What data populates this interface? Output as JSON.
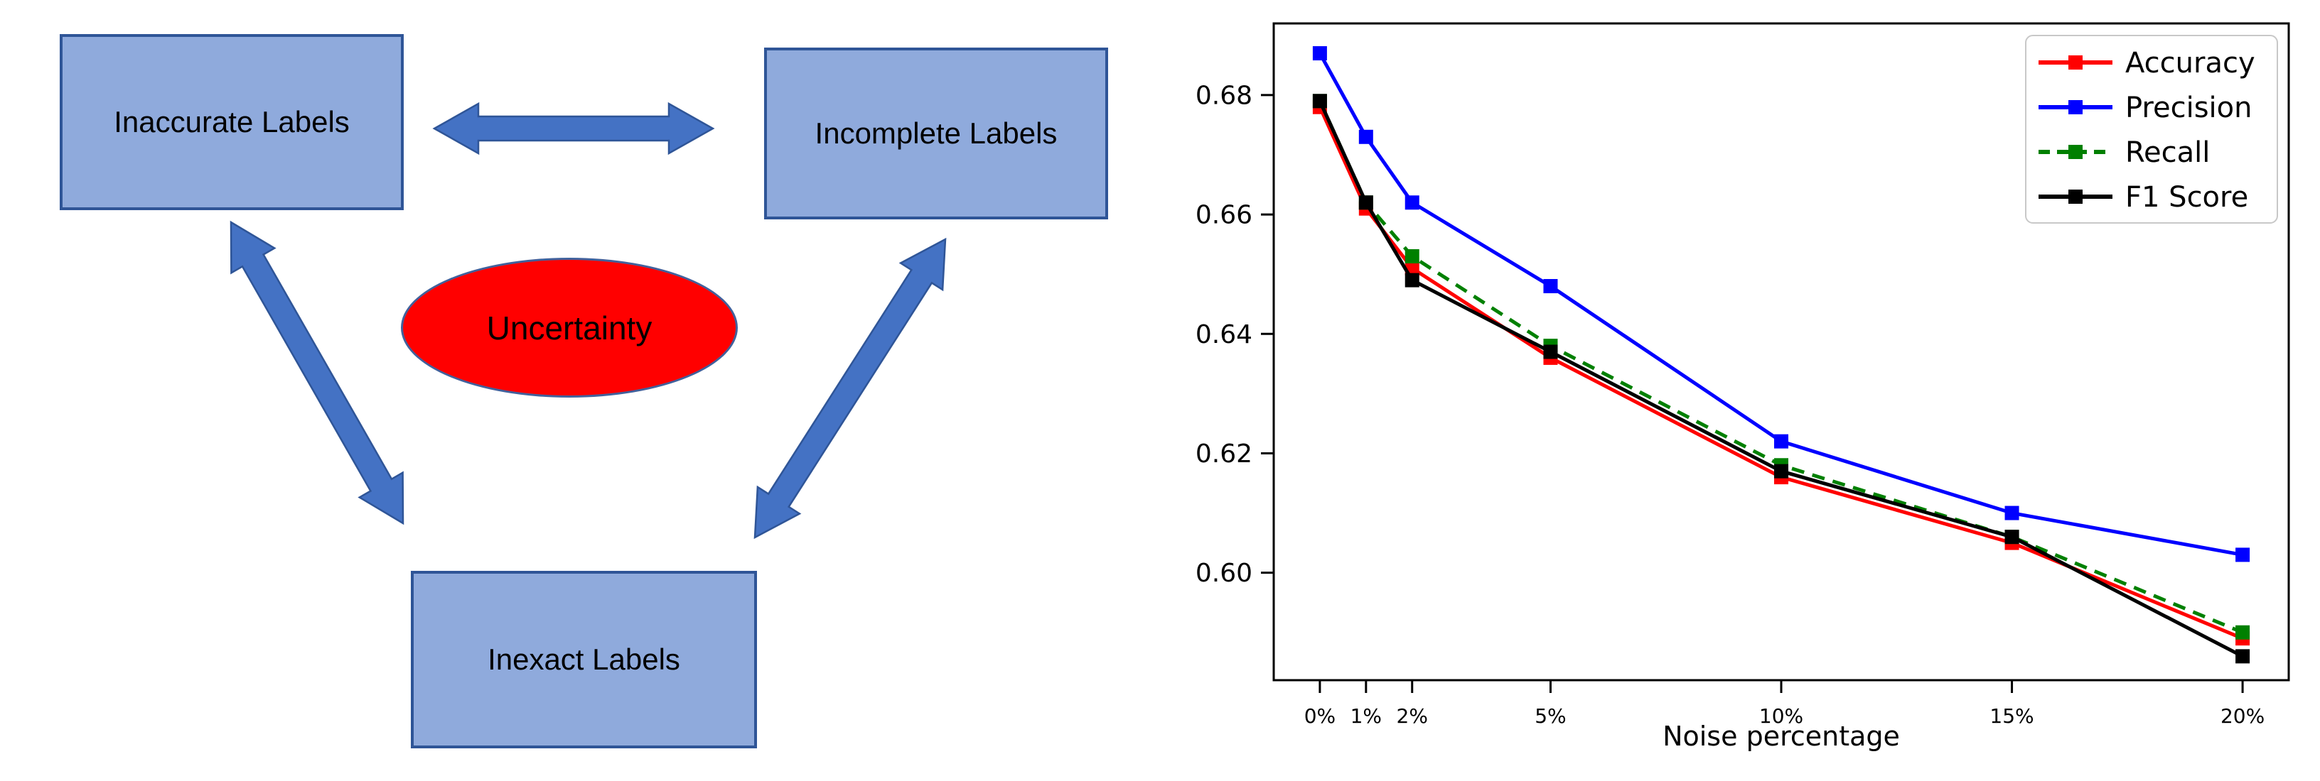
{
  "diagram": {
    "boxes": [
      {
        "label": "Inaccurate Labels"
      },
      {
        "label": "Incomplete Labels"
      },
      {
        "label": "Inexact Labels"
      }
    ],
    "ellipse_label": "Uncertainty",
    "colors": {
      "box_fill": "#8FAADC",
      "box_border": "#2F5597",
      "arrow_fill": "#4472C4",
      "arrow_border": "#2F5597",
      "ellipse_fill": "#FF0000",
      "ellipse_border": "#41619C",
      "text": "#000000"
    }
  },
  "chart_data": {
    "type": "line",
    "title": "",
    "xlabel": "Noise percentage",
    "ylabel": "",
    "categories": [
      "0%",
      "1%",
      "2%",
      "5%",
      "10%",
      "15%",
      "20%"
    ],
    "x_values": [
      0,
      1,
      2,
      5,
      10,
      15,
      20
    ],
    "series": [
      {
        "name": "Accuracy",
        "color": "#FF0000",
        "dash": "solid",
        "marker": "square",
        "values": [
          0.678,
          0.661,
          0.651,
          0.636,
          0.616,
          0.605,
          0.589
        ]
      },
      {
        "name": "Precision",
        "color": "#0000FF",
        "dash": "solid",
        "marker": "square",
        "values": [
          0.687,
          0.673,
          0.662,
          0.648,
          0.622,
          0.61,
          0.603
        ]
      },
      {
        "name": "Recall",
        "color": "#008000",
        "dash": "dashed",
        "marker": "square",
        "values": [
          0.679,
          0.662,
          0.653,
          0.638,
          0.618,
          0.606,
          0.59
        ]
      },
      {
        "name": "F1 Score",
        "color": "#000000",
        "dash": "solid",
        "marker": "square",
        "values": [
          0.679,
          0.662,
          0.649,
          0.637,
          0.617,
          0.606,
          0.586
        ]
      }
    ],
    "xlim": [
      -1,
      21
    ],
    "ylim": [
      0.582,
      0.692
    ],
    "yticks": [
      0.6,
      0.62,
      0.64,
      0.66,
      0.68
    ],
    "ytick_labels": [
      "0.60",
      "0.62",
      "0.64",
      "0.66",
      "0.68"
    ],
    "grid": false,
    "legend_position": "upper right",
    "axis_color": "#000000"
  }
}
